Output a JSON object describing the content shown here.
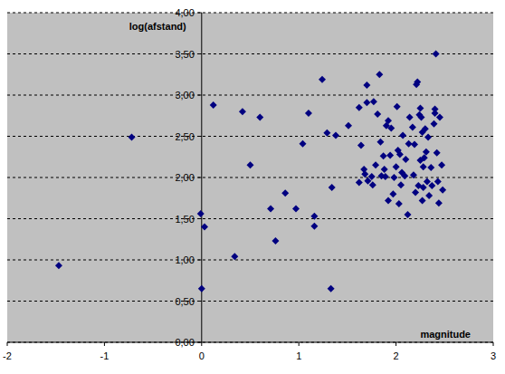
{
  "chart_data": {
    "type": "scatter",
    "x_label": "magnitude",
    "y_label": "log(afstand)",
    "color": "#000080",
    "marker": "diamond",
    "grid": true,
    "xlim": [
      -2,
      3
    ],
    "xticks": [
      -2,
      -1,
      0,
      1,
      2,
      3
    ],
    "ylim": [
      0,
      4
    ],
    "yticks": [
      {
        "value": 0,
        "label": "0,00"
      },
      {
        "value": 0.5,
        "label": "0,50"
      },
      {
        "value": 1,
        "label": "1,00"
      },
      {
        "value": 1.5,
        "label": "1,50"
      },
      {
        "value": 2,
        "label": "2,00"
      },
      {
        "value": 2.5,
        "label": "2,50"
      },
      {
        "value": 3,
        "label": "3,00"
      },
      {
        "value": 3.5,
        "label": "3,50"
      },
      {
        "value": 4,
        "label": "4,00"
      }
    ],
    "x": [
      -1.47,
      -0.72,
      -0.01,
      0.0,
      0.03,
      0.12,
      0.34,
      0.42,
      0.5,
      0.6,
      0.71,
      0.76,
      0.86,
      0.97,
      1.04,
      1.1,
      1.16,
      1.16,
      1.24,
      1.29,
      1.33,
      1.34,
      1.38,
      1.51,
      1.62,
      1.62,
      1.64,
      1.67,
      1.68,
      1.7,
      1.7,
      1.71,
      1.75,
      1.76,
      1.77,
      1.79,
      1.81,
      1.83,
      1.84,
      1.85,
      1.87,
      1.88,
      1.89,
      1.9,
      1.92,
      1.92,
      1.94,
      1.95,
      1.97,
      1.98,
      2.0,
      2.01,
      2.02,
      2.03,
      2.04,
      2.05,
      2.06,
      2.07,
      2.09,
      2.1,
      2.12,
      2.13,
      2.14,
      2.17,
      2.18,
      2.19,
      2.2,
      2.21,
      2.22,
      2.23,
      2.24,
      2.25,
      2.26,
      2.27,
      2.27,
      2.28,
      2.29,
      2.3,
      2.31,
      2.32,
      2.33,
      2.34,
      2.36,
      2.37,
      2.39,
      2.4,
      2.4,
      2.41,
      2.42,
      2.43,
      2.44,
      2.45,
      2.47,
      2.48,
      2.28,
      2.25
    ],
    "values": [
      0.93,
      2.49,
      1.56,
      0.65,
      1.4,
      2.88,
      1.04,
      2.8,
      2.15,
      2.73,
      1.62,
      1.23,
      1.81,
      1.62,
      2.41,
      2.78,
      1.53,
      1.41,
      3.19,
      2.54,
      0.65,
      1.88,
      2.51,
      2.63,
      2.85,
      1.94,
      2.39,
      2.1,
      2.04,
      2.91,
      3.12,
      1.96,
      2.01,
      1.91,
      2.92,
      2.15,
      2.77,
      3.25,
      2.43,
      2.02,
      2.26,
      2.1,
      2.01,
      2.63,
      2.69,
      1.72,
      2.27,
      2.6,
      1.8,
      2.0,
      2.13,
      2.86,
      2.33,
      1.68,
      2.28,
      1.91,
      2.06,
      2.51,
      2.02,
      2.22,
      1.55,
      2.41,
      2.73,
      2.61,
      2.03,
      2.4,
      1.82,
      3.13,
      3.16,
      1.9,
      2.76,
      2.84,
      2.73,
      2.55,
      1.72,
      1.88,
      2.24,
      2.59,
      2.31,
      1.95,
      2.49,
      1.78,
      2.12,
      1.9,
      2.65,
      2.78,
      2.83,
      3.5,
      2.3,
      1.95,
      1.69,
      2.73,
      2.15,
      1.85,
      2.13,
      2.21
    ]
  }
}
